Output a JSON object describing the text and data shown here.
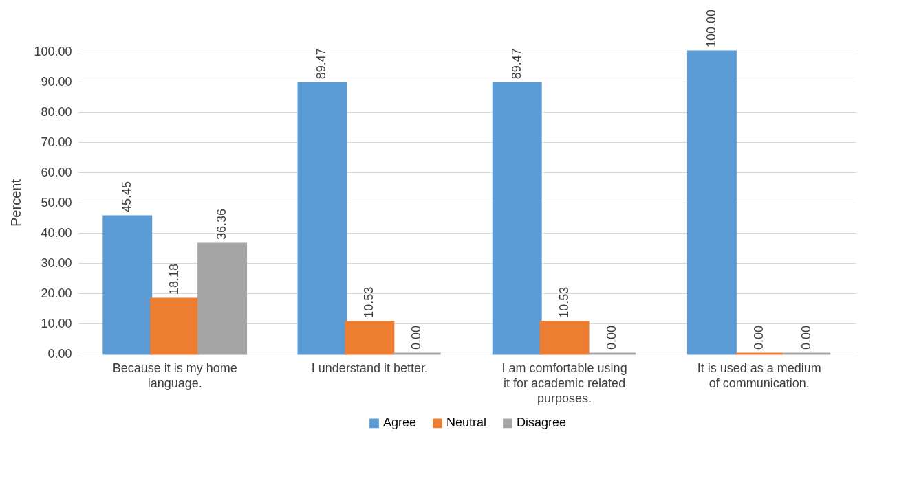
{
  "chart_data": {
    "type": "bar",
    "ylabel": "Percent",
    "categories": [
      "Because it is my home language.",
      "I understand it better.",
      "I am comfortable using it for academic related purposes.",
      "It is used as a medium of communication."
    ],
    "series": [
      {
        "name": "Agree",
        "color": "#5b9bd5",
        "values": [
          45.45,
          89.47,
          89.47,
          100
        ],
        "value_labels": [
          "45.45",
          "89.47",
          "89.47",
          "100.00"
        ]
      },
      {
        "name": "Neutral",
        "color": "#ed7d31",
        "values": [
          18.18,
          10.53,
          10.53,
          0
        ],
        "value_labels": [
          "18.18",
          "10.53",
          "10.53",
          "0.00"
        ]
      },
      {
        "name": "Disagree",
        "color": "#a5a5a5",
        "values": [
          36.36,
          0,
          0,
          0
        ],
        "value_labels": [
          "36.36",
          "0.00",
          "0.00",
          "0.00"
        ]
      }
    ],
    "ylim": [
      0,
      100
    ],
    "yticks": [
      {
        "value": 0,
        "label": "0.00"
      },
      {
        "value": 10,
        "label": "10.00"
      },
      {
        "value": 20,
        "label": "20.00"
      },
      {
        "value": 30,
        "label": "30.00"
      },
      {
        "value": 40,
        "label": "40.00"
      },
      {
        "value": 50,
        "label": "50.00"
      },
      {
        "value": 60,
        "label": "60.00"
      },
      {
        "value": 70,
        "label": "70.00"
      },
      {
        "value": 80,
        "label": "80.00"
      },
      {
        "value": 90,
        "label": "90.00"
      },
      {
        "value": 100,
        "label": "100.00"
      }
    ],
    "grid": "y",
    "legend": "bottom"
  }
}
